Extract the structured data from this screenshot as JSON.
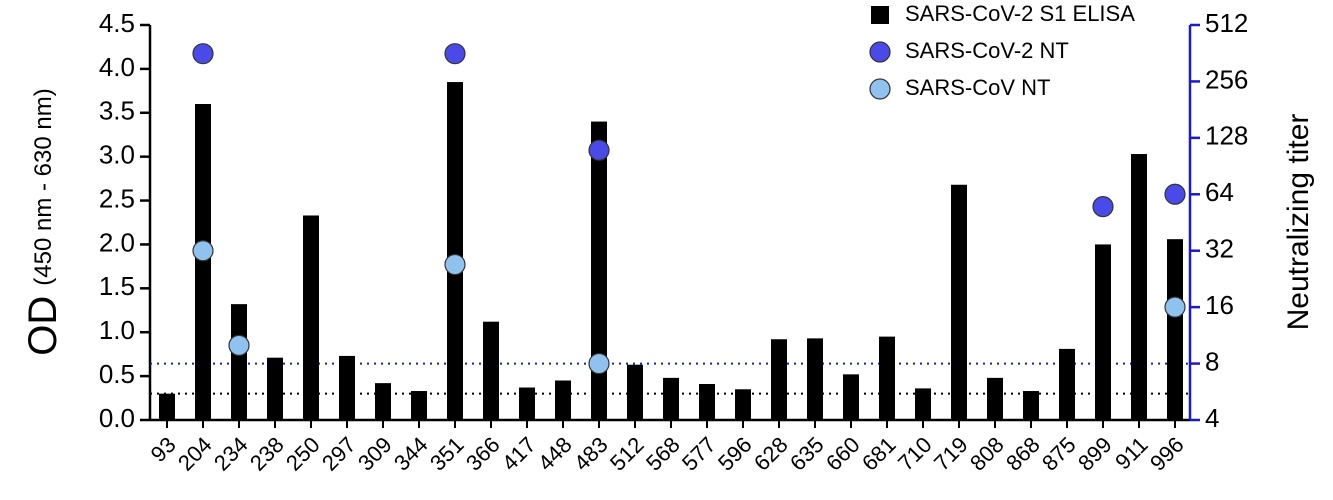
{
  "chart_data": {
    "type": "bar",
    "y_label": "OD",
    "y_label_sub": "(450 nm - 630 nm)",
    "y2_label": "Neutralizing titer",
    "y2_color": "#1a1acc",
    "categories": [
      "93",
      "204",
      "234",
      "238",
      "250",
      "297",
      "309",
      "344",
      "351",
      "366",
      "417",
      "448",
      "483",
      "512",
      "568",
      "577",
      "596",
      "628",
      "635",
      "660",
      "681",
      "710",
      "719",
      "808",
      "868",
      "875",
      "899",
      "911",
      "996"
    ],
    "series": [
      {
        "name": "SARS-CoV-2 S1 ELISA",
        "type": "bar",
        "axis": "y",
        "color": "#000000",
        "values": [
          0.3,
          3.6,
          1.32,
          0.71,
          2.33,
          0.73,
          0.42,
          0.33,
          3.85,
          1.12,
          0.37,
          0.45,
          3.4,
          0.63,
          0.48,
          0.41,
          0.35,
          0.92,
          0.93,
          0.52,
          0.95,
          0.36,
          2.68,
          0.48,
          0.33,
          0.81,
          2.0,
          3.03,
          2.06
        ]
      },
      {
        "name": "SARS-CoV-2 NT",
        "type": "scatter",
        "axis": "y2",
        "color": "#4a4ae8",
        "values": [
          null,
          360,
          null,
          null,
          null,
          null,
          null,
          null,
          360,
          null,
          null,
          null,
          110,
          null,
          null,
          null,
          null,
          null,
          null,
          null,
          null,
          null,
          null,
          null,
          null,
          null,
          55,
          null,
          64
        ]
      },
      {
        "name": "SARS-CoV NT",
        "type": "scatter",
        "axis": "y2",
        "color": "#90c2f0",
        "values": [
          null,
          32,
          10,
          null,
          null,
          null,
          null,
          null,
          27,
          null,
          null,
          null,
          8,
          null,
          null,
          null,
          null,
          null,
          null,
          null,
          null,
          null,
          null,
          null,
          null,
          null,
          null,
          null,
          16
        ]
      }
    ],
    "ylim": [
      0,
      4.5
    ],
    "yticks": [
      {
        "value": 0,
        "label": "0.0"
      },
      0.5,
      {
        "value": 1,
        "label": "1.0"
      },
      1.5,
      {
        "value": 2,
        "label": "2.0"
      },
      2.5,
      {
        "value": 3,
        "label": "3.0"
      },
      3.5,
      {
        "value": 4,
        "label": "4.0"
      },
      4.5
    ],
    "y2lim": [
      4,
      512
    ],
    "y2ticks": [
      4,
      8,
      16,
      32,
      64,
      128,
      256,
      512
    ],
    "y2log": 2,
    "reference_lines": [
      {
        "axis": "y",
        "value": 0.3,
        "color": "#000000"
      },
      {
        "axis": "y2",
        "value": 8,
        "color": "#1a1acc"
      }
    ],
    "legend": "top-right"
  }
}
